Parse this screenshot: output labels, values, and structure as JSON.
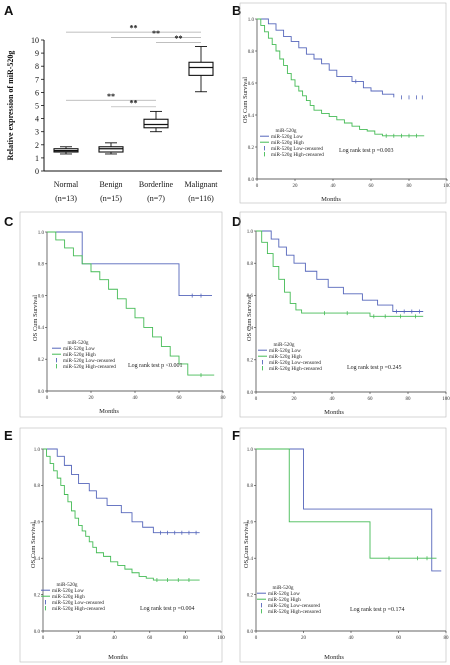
{
  "chart_data": [
    {
      "panel": "A",
      "type": "boxplot",
      "ylabel": "Relative expression of miR-520g",
      "ylim": [
        0,
        10
      ],
      "yticks": [
        "0",
        "1",
        "2",
        "3",
        "4",
        "5",
        "6",
        "7",
        "8",
        "9",
        "10"
      ],
      "categories": [
        {
          "name": "Normal",
          "n": "(n=13)"
        },
        {
          "name": "Benign",
          "n": "(n=15)"
        },
        {
          "name": "Borderline",
          "n": "(n=7)"
        },
        {
          "name": "Malignant",
          "n": "(n=116)"
        }
      ],
      "boxes": [
        {
          "min": 1.3,
          "q1": 1.45,
          "median": 1.55,
          "q3": 1.7,
          "max": 1.85
        },
        {
          "min": 1.3,
          "q1": 1.45,
          "median": 1.7,
          "q3": 1.85,
          "max": 2.15
        },
        {
          "min": 3.0,
          "q1": 3.3,
          "median": 3.55,
          "q3": 3.95,
          "max": 4.55
        },
        {
          "min": 6.05,
          "q1": 7.3,
          "median": 7.9,
          "q3": 8.3,
          "max": 9.5
        }
      ],
      "significance": [
        {
          "from": 0,
          "to": 3,
          "level": 10.6,
          "label": "**"
        },
        {
          "from": 1,
          "to": 3,
          "level": 10.2,
          "label": "**"
        },
        {
          "from": 2,
          "to": 3,
          "level": 9.8,
          "label": "**"
        },
        {
          "from": 0,
          "to": 2,
          "level": 5.4,
          "label": "**"
        },
        {
          "from": 1,
          "to": 2,
          "level": 4.9,
          "label": "**"
        }
      ]
    },
    {
      "panel": "B",
      "type": "line",
      "step": true,
      "ylabel": "OS Cum Survival",
      "xlabel": "Months",
      "xlim": [
        0,
        100
      ],
      "xticks": [
        "0",
        "20",
        "40",
        "60",
        "80",
        "100"
      ],
      "ylim": [
        0,
        1
      ],
      "yticks": [
        "0.0",
        "0.2",
        "0.4",
        "0.6",
        "0.8",
        "1.0"
      ],
      "legend_title": "miR-520g",
      "legend": [
        "miR-520g Low",
        "miR-520g High",
        "miR-520g Low-censored",
        "miR-520g High-censored"
      ],
      "annotation": "Log rank test p =0.003",
      "series": [
        {
          "name": "miR-520g Low",
          "color": "#5566bb",
          "x": [
            0,
            6,
            10,
            14,
            18,
            22,
            26,
            30,
            34,
            38,
            42,
            50,
            56,
            60,
            66,
            72
          ],
          "y": [
            1.0,
            0.97,
            0.93,
            0.89,
            0.86,
            0.82,
            0.78,
            0.75,
            0.72,
            0.68,
            0.64,
            0.61,
            0.57,
            0.55,
            0.53,
            0.51
          ],
          "censored_x": [
            52,
            76,
            80,
            84,
            87
          ]
        },
        {
          "name": "miR-520g High",
          "color": "#44bb55",
          "x": [
            0,
            2,
            4,
            6,
            8,
            10,
            12,
            14,
            16,
            18,
            20,
            22,
            24,
            26,
            28,
            30,
            34,
            38,
            42,
            46,
            50,
            54,
            58,
            62,
            66,
            88
          ],
          "y": [
            1.0,
            0.96,
            0.92,
            0.88,
            0.84,
            0.8,
            0.75,
            0.71,
            0.66,
            0.62,
            0.58,
            0.55,
            0.52,
            0.49,
            0.46,
            0.43,
            0.41,
            0.39,
            0.37,
            0.35,
            0.33,
            0.31,
            0.3,
            0.28,
            0.27,
            0.27
          ],
          "censored_x": [
            68,
            72,
            76,
            80,
            84
          ]
        }
      ]
    },
    {
      "panel": "C",
      "type": "line",
      "step": true,
      "ylabel": "OS Cum Survival",
      "xlabel": "Months",
      "xlim": [
        0,
        80
      ],
      "xticks": [
        "0",
        "20",
        "40",
        "60",
        "80"
      ],
      "ylim": [
        0,
        1
      ],
      "yticks": [
        "0.0",
        "0.2",
        "0.4",
        "0.6",
        "0.8",
        "1.0"
      ],
      "legend_title": "miR-520g",
      "legend": [
        "miR-520g Low",
        "miR-520g High",
        "miR-520g Low-censored",
        "miR-520g High-censored"
      ],
      "annotation": "Log rank test p <0.001",
      "series": [
        {
          "name": "miR-520g Low",
          "color": "#5566bb",
          "x": [
            0,
            16,
            60,
            75
          ],
          "y": [
            1.0,
            0.8,
            0.6,
            0.6
          ],
          "censored_x": [
            66,
            70
          ]
        },
        {
          "name": "miR-520g High",
          "color": "#44bb55",
          "x": [
            0,
            4,
            8,
            12,
            16,
            20,
            24,
            28,
            32,
            36,
            40,
            44,
            48,
            52,
            56,
            60,
            64,
            76
          ],
          "y": [
            1.0,
            0.95,
            0.9,
            0.85,
            0.8,
            0.75,
            0.7,
            0.64,
            0.58,
            0.52,
            0.46,
            0.4,
            0.34,
            0.28,
            0.22,
            0.17,
            0.1,
            0.1
          ],
          "censored_x": [
            70
          ]
        }
      ]
    },
    {
      "panel": "D",
      "type": "line",
      "step": true,
      "ylabel": "OS Cum Survival",
      "xlabel": "Months",
      "xlim": [
        0,
        100
      ],
      "xticks": [
        "0",
        "20",
        "40",
        "60",
        "80",
        "100"
      ],
      "ylim": [
        0,
        1
      ],
      "yticks": [
        "0.0",
        "0.2",
        "0.4",
        "0.6",
        "0.8",
        "1.0"
      ],
      "legend_title": "miR-520g",
      "legend": [
        "miR-520g Low",
        "miR-520g High",
        "miR-520g Low-censored",
        "miR-520g High-censored"
      ],
      "annotation": "Log rank test p =0.245",
      "series": [
        {
          "name": "miR-520g Low",
          "color": "#5566bb",
          "x": [
            0,
            8,
            12,
            16,
            20,
            26,
            32,
            38,
            46,
            56,
            64,
            72,
            88
          ],
          "y": [
            1.0,
            0.95,
            0.9,
            0.85,
            0.8,
            0.75,
            0.7,
            0.65,
            0.61,
            0.57,
            0.54,
            0.5,
            0.5
          ],
          "censored_x": [
            74,
            78,
            82,
            86
          ]
        },
        {
          "name": "miR-520g High",
          "color": "#44bb55",
          "x": [
            0,
            3,
            6,
            9,
            12,
            15,
            18,
            21,
            24,
            60,
            88
          ],
          "y": [
            1.0,
            0.93,
            0.86,
            0.78,
            0.7,
            0.62,
            0.55,
            0.51,
            0.49,
            0.47,
            0.47
          ],
          "censored_x": [
            36,
            48,
            62,
            68,
            76,
            84
          ]
        }
      ]
    },
    {
      "panel": "E",
      "type": "line",
      "step": true,
      "ylabel": "OS Cum Survival",
      "xlabel": "Months",
      "xlim": [
        0,
        100
      ],
      "xticks": [
        "0",
        "20",
        "40",
        "60",
        "80",
        "100"
      ],
      "ylim": [
        0,
        1
      ],
      "yticks": [
        "0.0",
        "0.2",
        "0.4",
        "0.6",
        "0.8",
        "1.0"
      ],
      "legend_title": "miR-520g",
      "legend": [
        "miR-520g Low",
        "miR-520g High",
        "miR-520g Low-censored",
        "miR-520g High-censored"
      ],
      "annotation": "Log rank test p =0.004",
      "series": [
        {
          "name": "miR-520g Low",
          "color": "#5566bb",
          "x": [
            0,
            8,
            12,
            16,
            20,
            26,
            30,
            36,
            44,
            50,
            56,
            62,
            88
          ],
          "y": [
            1.0,
            0.96,
            0.91,
            0.86,
            0.81,
            0.77,
            0.73,
            0.69,
            0.65,
            0.6,
            0.57,
            0.54,
            0.54
          ],
          "censored_x": [
            66,
            70,
            74,
            78,
            82,
            86
          ]
        },
        {
          "name": "miR-520g High",
          "color": "#44bb55",
          "x": [
            0,
            2,
            4,
            6,
            8,
            10,
            12,
            14,
            16,
            18,
            20,
            22,
            24,
            26,
            28,
            30,
            34,
            38,
            42,
            46,
            50,
            54,
            58,
            62,
            88
          ],
          "y": [
            1.0,
            0.96,
            0.92,
            0.88,
            0.84,
            0.8,
            0.75,
            0.71,
            0.66,
            0.62,
            0.58,
            0.55,
            0.52,
            0.49,
            0.46,
            0.43,
            0.41,
            0.38,
            0.36,
            0.34,
            0.32,
            0.3,
            0.29,
            0.28,
            0.28
          ],
          "censored_x": [
            64,
            70,
            76,
            82
          ]
        }
      ]
    },
    {
      "panel": "F",
      "type": "line",
      "step": true,
      "ylabel": "OS Cum Survival",
      "xlabel": "Months",
      "xlim": [
        0,
        80
      ],
      "xticks": [
        "0",
        "20",
        "40",
        "60",
        "80"
      ],
      "ylim": [
        0,
        1
      ],
      "yticks": [
        "0.0",
        "0.2",
        "0.4",
        "0.6",
        "0.8",
        "1.0"
      ],
      "legend_title": "miR-520g",
      "legend": [
        "miR-520g Low",
        "miR-520g High",
        "miR-520g Low-censored",
        "miR-520g High-censored"
      ],
      "annotation": "Log rank test p =0.174",
      "series": [
        {
          "name": "miR-520g Low",
          "color": "#5566bb",
          "x": [
            0,
            20,
            74,
            78
          ],
          "y": [
            1.0,
            0.67,
            0.33,
            0.33
          ],
          "censored_x": []
        },
        {
          "name": "miR-520g High",
          "color": "#44bb55",
          "x": [
            0,
            14,
            48,
            76
          ],
          "y": [
            1.0,
            0.6,
            0.4,
            0.4
          ],
          "censored_x": [
            56,
            68,
            72
          ]
        }
      ]
    }
  ]
}
